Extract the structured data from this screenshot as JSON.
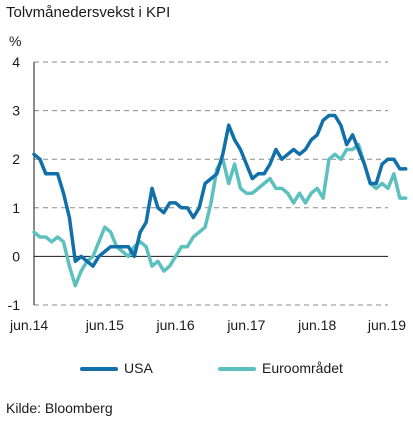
{
  "chart_data": {
    "type": "line",
    "title": "Tolvmånedersvekst i KPI",
    "ylabel": "%",
    "ylim": [
      -1,
      4
    ],
    "yticks": [
      4,
      3,
      2,
      1,
      0,
      -1
    ],
    "x_start": "2014-06",
    "xticks": [
      "jun.14",
      "jun.15",
      "jun.16",
      "jun.17",
      "jun.18",
      "jun.19"
    ],
    "grid": "horizontal dashed",
    "legend_position": "bottom",
    "series": [
      {
        "name": "USA",
        "color": "#1170aa",
        "values": [
          2.1,
          2.0,
          1.7,
          1.7,
          1.7,
          1.3,
          0.8,
          -0.1,
          0.0,
          -0.1,
          -0.2,
          0.0,
          0.1,
          0.2,
          0.2,
          0.2,
          0.2,
          0.0,
          0.5,
          0.7,
          1.4,
          1.0,
          0.9,
          1.1,
          1.1,
          1.0,
          1.0,
          0.8,
          1.0,
          1.5,
          1.6,
          1.7,
          2.1,
          2.7,
          2.4,
          2.2,
          1.9,
          1.6,
          1.7,
          1.7,
          1.9,
          2.2,
          2.0,
          2.1,
          2.2,
          2.1,
          2.2,
          2.4,
          2.5,
          2.8,
          2.9,
          2.9,
          2.7,
          2.3,
          2.5,
          2.2,
          1.9,
          1.5,
          1.5,
          1.9,
          2.0,
          2.0,
          1.8,
          1.8
        ]
      },
      {
        "name": "Euroområdet",
        "color": "#5bc0be",
        "values": [
          0.5,
          0.4,
          0.4,
          0.3,
          0.4,
          0.3,
          -0.2,
          -0.6,
          -0.3,
          -0.1,
          0.0,
          0.3,
          0.6,
          0.5,
          0.2,
          0.1,
          0.0,
          0.2,
          0.3,
          0.2,
          -0.2,
          -0.1,
          -0.3,
          -0.2,
          0.0,
          0.2,
          0.2,
          0.4,
          0.5,
          0.6,
          1.1,
          1.8,
          2.0,
          1.5,
          1.9,
          1.4,
          1.3,
          1.3,
          1.4,
          1.5,
          1.6,
          1.4,
          1.4,
          1.3,
          1.1,
          1.3,
          1.1,
          1.3,
          1.4,
          1.2,
          2.0,
          2.1,
          2.0,
          2.2,
          2.2,
          2.3,
          1.9,
          1.5,
          1.4,
          1.5,
          1.4,
          1.7,
          1.2,
          1.2
        ]
      }
    ]
  },
  "legend": {
    "usa": "USA",
    "euro": "Euroområdet"
  },
  "source": "Kilde: Bloomberg"
}
